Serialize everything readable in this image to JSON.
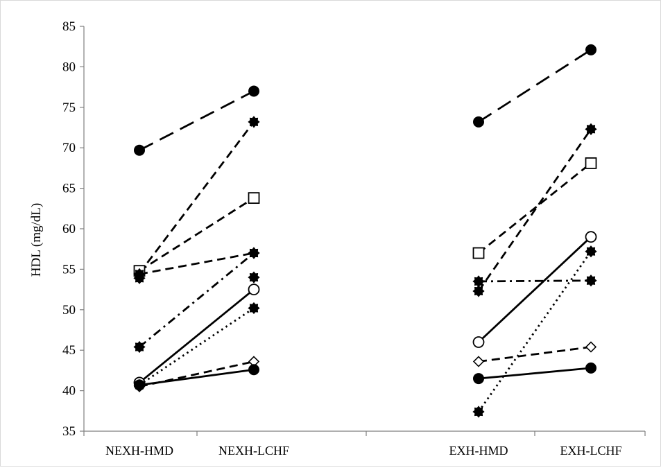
{
  "chart_data": {
    "type": "line",
    "ylabel": "HDL (mg/dL)",
    "xlabel": "",
    "title": "",
    "ylim": [
      35,
      85
    ],
    "yticks": [
      35,
      40,
      45,
      50,
      55,
      60,
      65,
      70,
      75,
      80,
      85
    ],
    "grid": false,
    "legend": "none",
    "categories": [
      "NEXH-HMD",
      "NEXH-LCHF",
      "EXH-HMD",
      "EXH-LCHF"
    ],
    "category_positions": [
      0,
      1,
      3,
      4
    ],
    "series": [
      {
        "style": "longdash",
        "marker": "filled-circle",
        "segments": [
          [
            69.7,
            77.0
          ],
          [
            73.2,
            82.1
          ]
        ]
      },
      {
        "style": "dash",
        "marker": "filled-burst",
        "segments": [
          [
            54.5,
            73.2
          ],
          [
            52.3,
            72.3
          ]
        ]
      },
      {
        "style": "dash",
        "marker": "open-square",
        "segments": [
          [
            54.8,
            63.8
          ],
          [
            57.0,
            68.1
          ]
        ]
      },
      {
        "style": "dash",
        "marker": "filled-burst",
        "segments": [
          [
            54.4,
            57.0
          ]
        ]
      },
      {
        "style": "dashdot",
        "marker": "filled-burst",
        "segments": [
          [
            45.4,
            57.0
          ],
          [
            53.5,
            53.6
          ]
        ]
      },
      {
        "style": "solid",
        "marker": "open-circle",
        "segments": [
          [
            41.0,
            52.5
          ],
          [
            46.0,
            59.0
          ]
        ]
      },
      {
        "style": "dot",
        "marker": "filled-burst",
        "segments": [
          [
            40.7,
            50.2
          ],
          [
            37.4,
            57.2
          ]
        ]
      },
      {
        "style": "dash",
        "marker": "open-diamond",
        "segments": [
          [
            40.5,
            43.6
          ],
          [
            43.6,
            45.4
          ]
        ]
      },
      {
        "style": "solid",
        "marker": "filled-circle",
        "segments": [
          [
            40.7,
            42.6
          ],
          [
            41.5,
            42.8
          ]
        ]
      },
      {
        "style": "none",
        "marker": "filled-burst",
        "segments": [
          [
            53.9,
            54.0
          ]
        ]
      }
    ]
  }
}
